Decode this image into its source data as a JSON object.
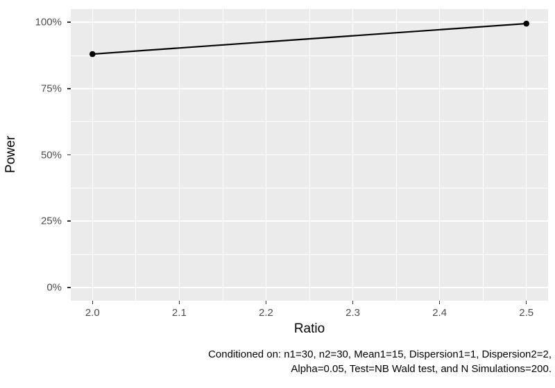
{
  "chart_data": {
    "type": "line",
    "title": "",
    "xlabel": "Ratio",
    "ylabel": "Power",
    "series": [
      {
        "name": "Power",
        "x": [
          2.0,
          2.5
        ],
        "y_percent": [
          88,
          99.5
        ]
      }
    ],
    "x_ticks": {
      "values": [
        2.0,
        2.1,
        2.2,
        2.3,
        2.4,
        2.5
      ],
      "labels": [
        "2.0",
        "2.1",
        "2.2",
        "2.3",
        "2.4",
        "2.5"
      ]
    },
    "y_ticks": {
      "values": [
        0,
        25,
        50,
        75,
        100
      ],
      "labels": [
        "0%",
        "25%",
        "50%",
        "75%",
        "100%"
      ]
    },
    "x_minor_gridlines": [
      2.05,
      2.15,
      2.25,
      2.35,
      2.45
    ],
    "y_minor_gridlines": [
      12.5,
      37.5,
      62.5,
      87.5
    ],
    "xlim": [
      1.975,
      2.525
    ],
    "ylim_percent": [
      -5,
      105
    ],
    "grid": "on",
    "legend": "none",
    "theme": "ggplot2-gray"
  },
  "caption": {
    "line1": "Conditioned on: n1=30, n2=30, Mean1=15, Dispersion1=1, Dispersion2=2,",
    "line2": "Alpha=0.05, Test=NB Wald test, and N Simulations=200."
  },
  "colors": {
    "page_background": "#FFFFFF",
    "panel_background": "#EBEBEB",
    "gridline": "#FFFFFF",
    "series_line": "#000000",
    "point": "#000000",
    "tick_mark": "#333333",
    "tick_label_text": "#4D4D4D",
    "axis_title_text": "#000000",
    "caption_text": "#000000"
  }
}
